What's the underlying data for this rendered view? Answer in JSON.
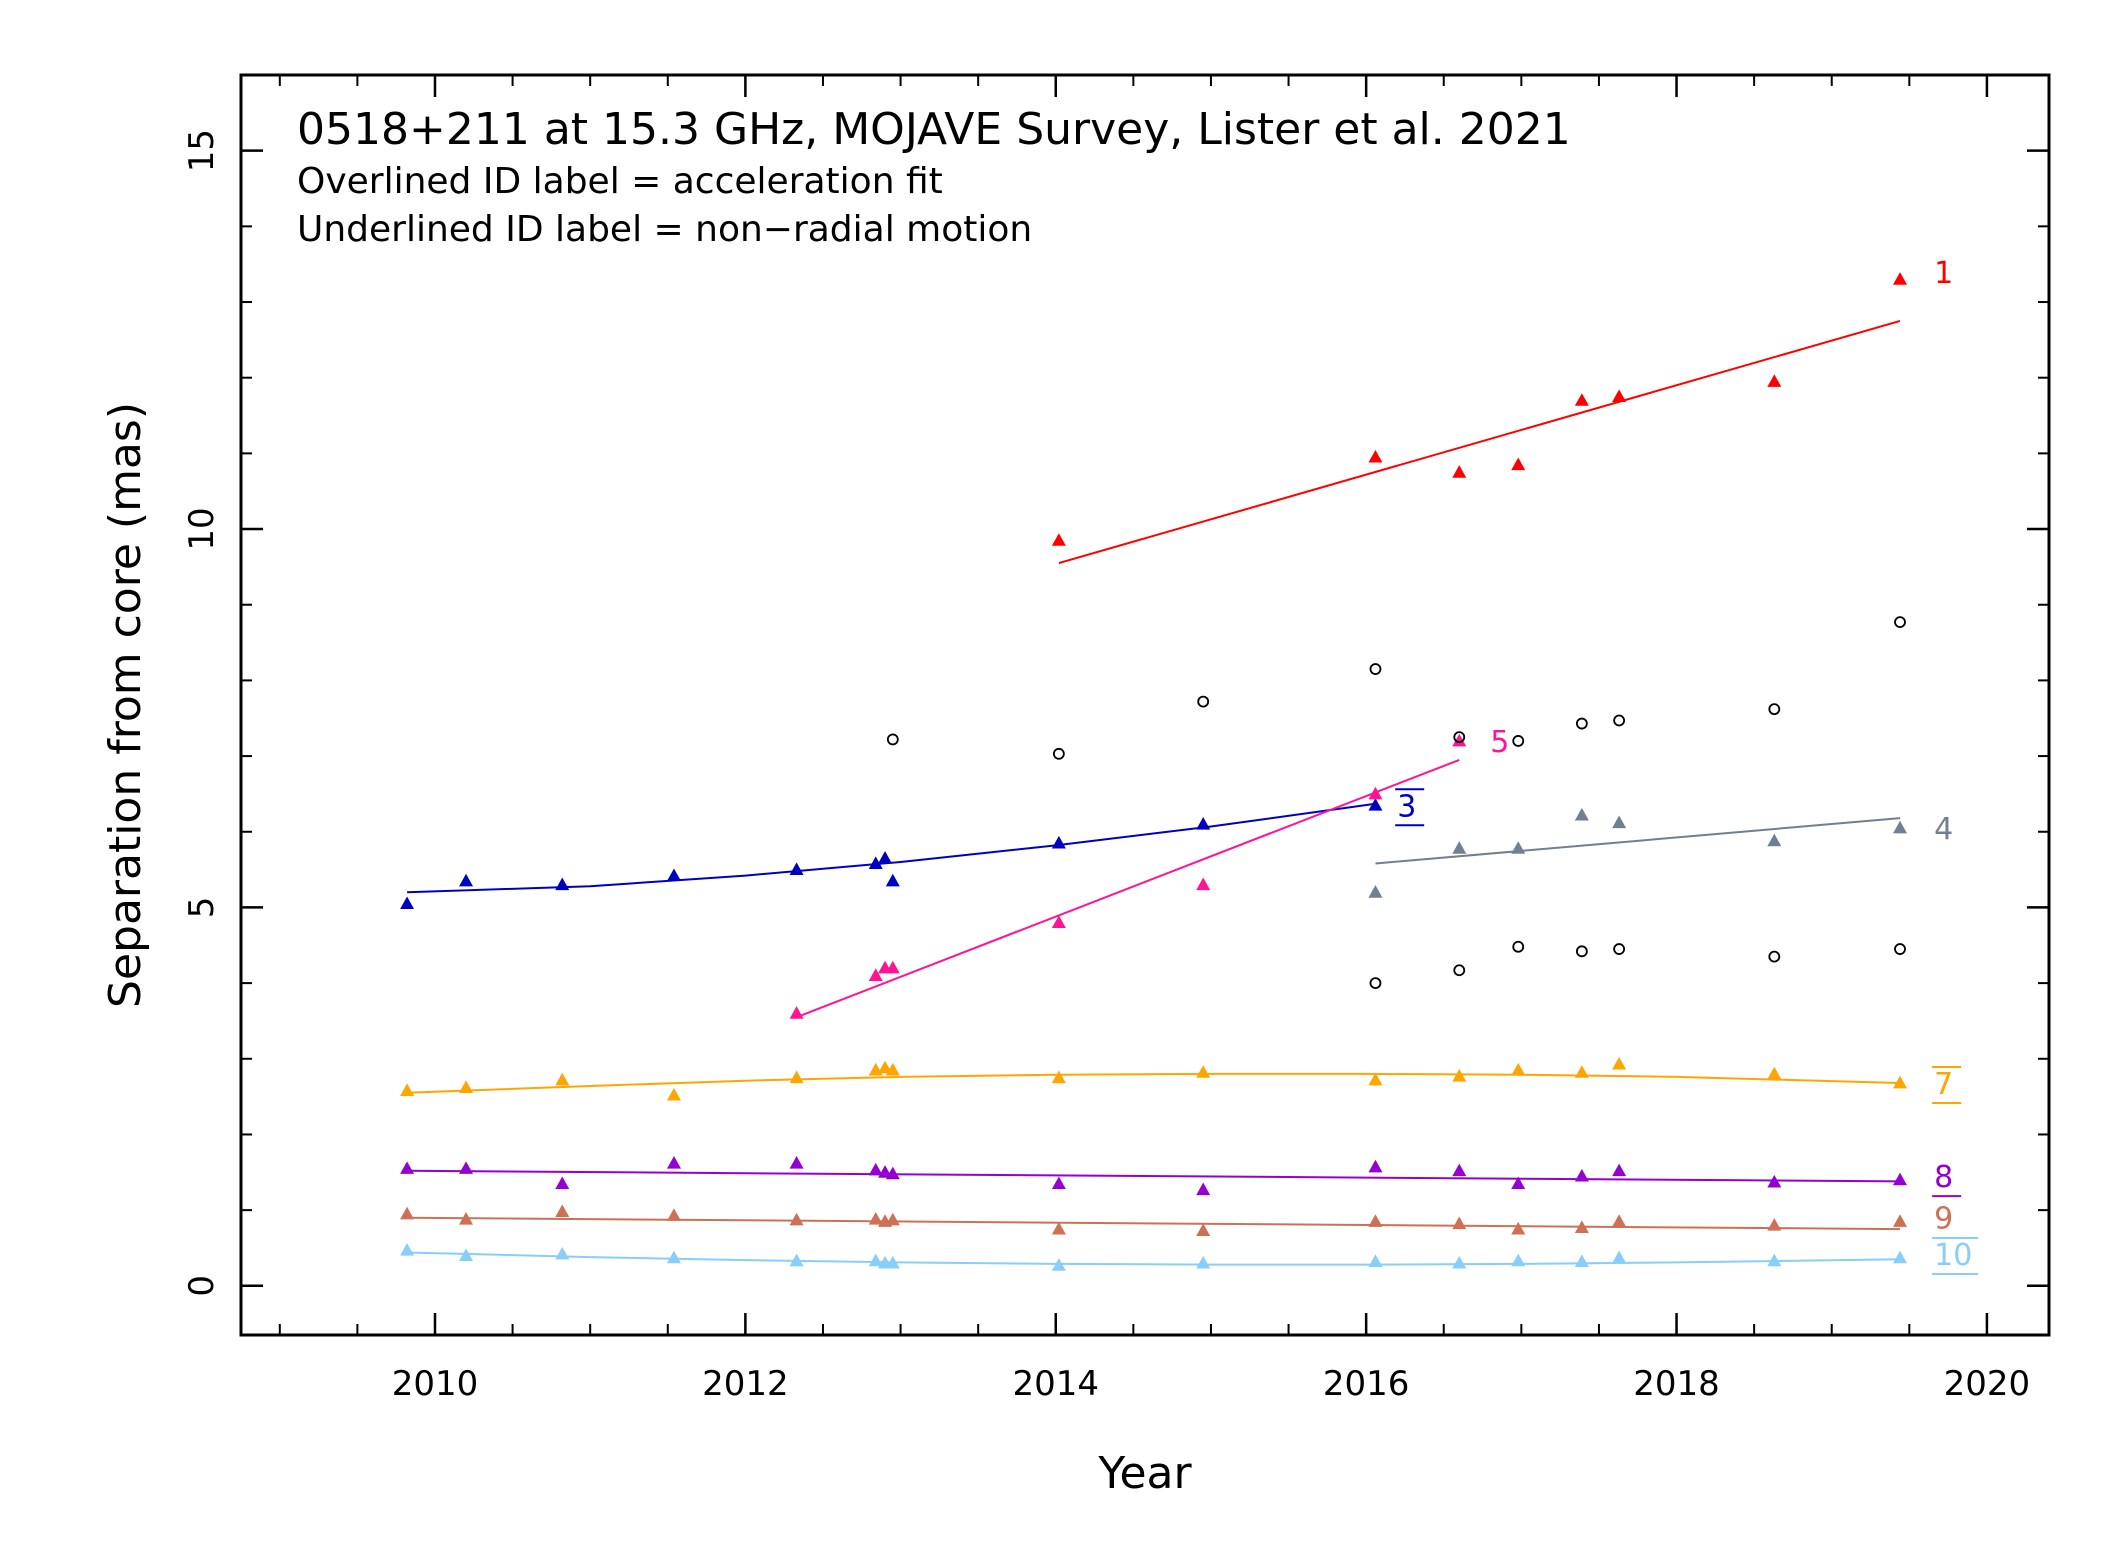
{
  "chart_data": {
    "type": "scatter",
    "title_lines": [
      "0518+211 at 15.3 GHz, MOJAVE Survey, Lister et al. 2021",
      "Overlined ID label = acceleration fit",
      "Underlined ID label = non−radial motion"
    ],
    "xlabel": "Year",
    "ylabel": "Separation from core (mas)",
    "xlim": [
      2008.75,
      2020.4
    ],
    "ylim": [
      -0.65,
      16.0
    ],
    "xticks": [
      2010,
      2012,
      2014,
      2016,
      2018,
      2020
    ],
    "xtick_labels": [
      "2010",
      "2012",
      "2014",
      "2016",
      "2018",
      "2020"
    ],
    "yticks": [
      0,
      5,
      10,
      15
    ],
    "ytick_labels": [
      "0",
      "5",
      "10",
      "15"
    ],
    "x_minor_step": 0.5,
    "y_minor_step": 1,
    "grid": false,
    "series": [
      {
        "name": "1",
        "color": "#ff0000",
        "label_style": "plain",
        "x": [
          2014.02,
          2016.06,
          2016.6,
          2016.98,
          2017.39,
          2017.63,
          2018.63,
          2019.44
        ],
        "y": [
          9.85,
          10.95,
          10.75,
          10.85,
          11.7,
          11.75,
          11.95,
          13.3
        ],
        "fit": {
          "kind": "linear",
          "x": [
            2014.02,
            2019.44
          ],
          "y": [
            9.55,
            12.75
          ]
        },
        "label_pos": [
          2019.66,
          13.4
        ]
      },
      {
        "name": "3",
        "color": "#0000c0",
        "label_style": "overline-underline",
        "x": [
          2009.82,
          2010.2,
          2010.82,
          2011.54,
          2012.33,
          2012.84,
          2012.9,
          2012.95,
          2014.02,
          2014.95,
          2016.06
        ],
        "y": [
          5.05,
          5.35,
          5.3,
          5.42,
          5.5,
          5.58,
          5.65,
          5.35,
          5.85,
          6.1,
          6.35
        ],
        "fit": {
          "kind": "curve",
          "x": [
            2009.82,
            2011.0,
            2012.0,
            2013.0,
            2014.0,
            2015.0,
            2016.06
          ],
          "y": [
            5.2,
            5.28,
            5.42,
            5.6,
            5.82,
            6.07,
            6.37
          ]
        },
        "label_pos": [
          2016.2,
          6.35
        ]
      },
      {
        "name": "4",
        "color": "#708090",
        "label_style": "plain",
        "x": [
          2016.06,
          2016.6,
          2016.98,
          2017.39,
          2017.63,
          2018.63,
          2019.44
        ],
        "y": [
          5.2,
          5.78,
          5.78,
          6.22,
          6.12,
          5.88,
          6.05
        ],
        "fit": {
          "kind": "linear",
          "x": [
            2016.06,
            2019.44
          ],
          "y": [
            5.58,
            6.18
          ]
        },
        "label_pos": [
          2019.66,
          6.05
        ]
      },
      {
        "name": "5",
        "color": "#ff1493",
        "label_style": "plain",
        "x": [
          2012.33,
          2012.84,
          2012.9,
          2012.95,
          2014.02,
          2014.95,
          2016.06,
          2016.6
        ],
        "y": [
          3.6,
          4.1,
          4.2,
          4.2,
          4.8,
          5.3,
          6.5,
          7.2
        ],
        "fit": {
          "kind": "linear",
          "x": [
            2012.33,
            2016.6
          ],
          "y": [
            3.55,
            6.95
          ]
        },
        "label_pos": [
          2016.8,
          7.2
        ]
      },
      {
        "name": "7",
        "color": "#ffa500",
        "label_style": "overline-underline",
        "x": [
          2009.82,
          2010.2,
          2010.82,
          2011.54,
          2012.33,
          2012.84,
          2012.9,
          2012.95,
          2014.02,
          2014.95,
          2016.06,
          2016.6,
          2016.98,
          2017.39,
          2017.63,
          2018.63,
          2019.44
        ],
        "y": [
          2.58,
          2.62,
          2.72,
          2.52,
          2.75,
          2.85,
          2.88,
          2.85,
          2.75,
          2.82,
          2.72,
          2.77,
          2.85,
          2.82,
          2.93,
          2.8,
          2.68
        ],
        "fit": {
          "kind": "curve",
          "x": [
            2009.82,
            2011.0,
            2012.0,
            2013.0,
            2014.0,
            2015.0,
            2016.0,
            2017.0,
            2018.0,
            2019.44
          ],
          "y": [
            2.55,
            2.64,
            2.71,
            2.76,
            2.79,
            2.8,
            2.8,
            2.79,
            2.76,
            2.68
          ]
        },
        "label_pos": [
          2019.66,
          2.68
        ]
      },
      {
        "name": "8",
        "color": "#9400d3",
        "label_style": "underline",
        "x": [
          2009.82,
          2010.2,
          2010.82,
          2011.54,
          2012.33,
          2012.84,
          2012.9,
          2012.95,
          2014.02,
          2014.95,
          2016.06,
          2016.6,
          2016.98,
          2017.39,
          2017.63,
          2018.63,
          2019.44
        ],
        "y": [
          1.55,
          1.55,
          1.35,
          1.62,
          1.62,
          1.53,
          1.5,
          1.48,
          1.35,
          1.27,
          1.57,
          1.52,
          1.35,
          1.45,
          1.52,
          1.37,
          1.4
        ],
        "fit": {
          "kind": "linear",
          "x": [
            2009.82,
            2019.44
          ],
          "y": [
            1.52,
            1.38
          ]
        },
        "label_pos": [
          2019.66,
          1.45
        ]
      },
      {
        "name": "9",
        "color": "#cd7054",
        "label_style": "plain",
        "x": [
          2009.82,
          2010.2,
          2010.82,
          2011.54,
          2012.33,
          2012.84,
          2012.9,
          2012.95,
          2014.02,
          2014.95,
          2016.06,
          2016.6,
          2016.98,
          2017.39,
          2017.63,
          2018.63,
          2019.44
        ],
        "y": [
          0.95,
          0.88,
          0.98,
          0.93,
          0.87,
          0.88,
          0.85,
          0.87,
          0.75,
          0.73,
          0.85,
          0.82,
          0.75,
          0.77,
          0.85,
          0.8,
          0.85
        ],
        "fit": {
          "kind": "linear",
          "x": [
            2009.82,
            2019.44
          ],
          "y": [
            0.9,
            0.75
          ]
        },
        "label_pos": [
          2019.66,
          0.9
        ]
      },
      {
        "name": "10",
        "color": "#87cefa",
        "label_style": "overline-underline",
        "x": [
          2009.82,
          2010.2,
          2010.82,
          2011.54,
          2012.33,
          2012.84,
          2012.9,
          2012.95,
          2014.02,
          2014.95,
          2016.06,
          2016.6,
          2016.98,
          2017.39,
          2017.63,
          2018.63,
          2019.44
        ],
        "y": [
          0.47,
          0.4,
          0.42,
          0.37,
          0.33,
          0.33,
          0.3,
          0.3,
          0.27,
          0.3,
          0.32,
          0.3,
          0.33,
          0.32,
          0.37,
          0.33,
          0.37
        ],
        "fit": {
          "kind": "curve",
          "x": [
            2009.82,
            2011.0,
            2012.0,
            2013.0,
            2014.0,
            2015.0,
            2016.0,
            2017.0,
            2018.0,
            2019.44
          ],
          "y": [
            0.44,
            0.38,
            0.34,
            0.31,
            0.29,
            0.28,
            0.28,
            0.29,
            0.31,
            0.35
          ]
        },
        "label_pos": [
          2019.66,
          0.42
        ]
      }
    ],
    "unidentified": {
      "name": "",
      "color": "#000000",
      "marker": "open-circle",
      "x": [
        2012.95,
        2014.02,
        2014.95,
        2016.06,
        2016.6,
        2016.98,
        2017.39,
        2017.63,
        2018.63,
        2019.44,
        2016.06,
        2016.6,
        2016.98,
        2017.39,
        2017.63,
        2018.63,
        2019.44
      ],
      "y": [
        7.22,
        7.03,
        7.72,
        8.15,
        7.25,
        7.2,
        7.43,
        7.47,
        7.62,
        8.77,
        4.0,
        4.17,
        4.48,
        4.42,
        4.45,
        4.35,
        4.45
      ]
    }
  }
}
